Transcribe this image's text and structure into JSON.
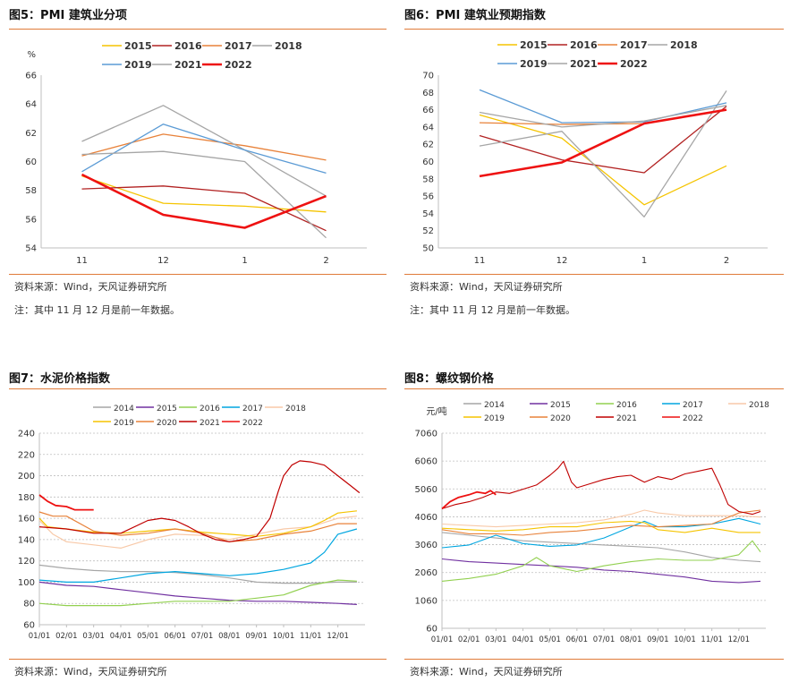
{
  "panels": [
    {
      "title": "图5：PMI 建筑业分项",
      "source": "资料来源：Wind，天风证券研究所",
      "note": "注：其中 11 月 12 月是前一年数据。"
    },
    {
      "title": "图6：PMI 建筑业预期指数",
      "source": "资料来源：Wind，天风证券研究所",
      "note": "注：其中 11 月 12 月是前一年数据。"
    },
    {
      "title": "图7：水泥价格指数",
      "source": "资料来源：Wind，天风证券研究所",
      "note": ""
    },
    {
      "title": "图8：螺纹钢价格",
      "source": "资料来源：Wind，天风证券研究所",
      "note": ""
    }
  ],
  "chart_data": [
    {
      "type": "line",
      "ylabel": "%",
      "categories": [
        "11",
        "12",
        "1",
        "2"
      ],
      "ylim": [
        54,
        66
      ],
      "yticks": [
        54,
        56,
        58,
        60,
        62,
        64,
        66
      ],
      "legend_placement": "top",
      "grid": false,
      "series": [
        {
          "name": "2015",
          "color": "#f5c400",
          "width": 1.3,
          "values": [
            59.0,
            57.1,
            56.9,
            56.5
          ]
        },
        {
          "name": "2016",
          "color": "#b22222",
          "width": 1.3,
          "values": [
            58.1,
            58.3,
            57.8,
            55.2
          ]
        },
        {
          "name": "2017",
          "color": "#e8823a",
          "width": 1.3,
          "values": [
            60.4,
            61.9,
            61.1,
            60.1
          ]
        },
        {
          "name": "2018",
          "color": "#a6a6a6",
          "width": 1.3,
          "values": [
            61.4,
            63.9,
            60.8,
            57.6
          ]
        },
        {
          "name": "2019",
          "color": "#5b9bd5",
          "width": 1.3,
          "values": [
            59.3,
            62.6,
            60.8,
            59.2
          ]
        },
        {
          "name": "2021",
          "color": "#a6a6a6",
          "width": 1.3,
          "values": [
            60.5,
            60.7,
            60.0,
            54.7
          ]
        },
        {
          "name": "2022",
          "color": "#ee1111",
          "width": 2.6,
          "values": [
            59.1,
            56.3,
            55.4,
            57.6
          ]
        }
      ]
    },
    {
      "type": "line",
      "categories": [
        "11",
        "12",
        "1",
        "2"
      ],
      "ylim": [
        50,
        70
      ],
      "yticks": [
        50,
        52,
        54,
        56,
        58,
        60,
        62,
        64,
        66,
        68,
        70
      ],
      "legend_placement": "top",
      "grid": false,
      "series": [
        {
          "name": "2015",
          "color": "#f5c400",
          "width": 1.3,
          "values": [
            65.4,
            62.7,
            55.0,
            59.5
          ]
        },
        {
          "name": "2016",
          "color": "#b22222",
          "width": 1.3,
          "values": [
            63.0,
            60.2,
            58.7,
            66.4
          ]
        },
        {
          "name": "2017",
          "color": "#e8823a",
          "width": 1.3,
          "values": [
            64.5,
            64.3,
            64.4,
            66.0
          ]
        },
        {
          "name": "2018",
          "color": "#a6a6a6",
          "width": 1.3,
          "values": [
            61.8,
            63.5,
            53.6,
            68.2
          ]
        },
        {
          "name": "2019",
          "color": "#5b9bd5",
          "width": 1.3,
          "values": [
            68.3,
            64.5,
            64.6,
            66.8
          ]
        },
        {
          "name": "2021",
          "color": "#a6a6a6",
          "width": 1.3,
          "values": [
            65.7,
            64.0,
            64.7,
            66.5
          ]
        },
        {
          "name": "2022",
          "color": "#ee1111",
          "width": 2.6,
          "values": [
            58.3,
            59.9,
            64.4,
            66.0
          ]
        }
      ]
    },
    {
      "type": "line",
      "x_ticks": [
        "01/01",
        "02/01",
        "03/01",
        "04/01",
        "05/01",
        "06/01",
        "07/01",
        "08/01",
        "09/01",
        "10/01",
        "11/01",
        "12/01"
      ],
      "ylim": [
        60,
        240
      ],
      "yticks": [
        60,
        80,
        100,
        120,
        140,
        160,
        180,
        200,
        220,
        240
      ],
      "legend_placement": "top",
      "grid": "horizontal-dashed",
      "series": [
        {
          "name": "2014",
          "color": "#a6a6a6",
          "width": 1.2,
          "months": [
            0,
            1,
            2,
            3,
            4,
            5,
            6,
            7,
            8,
            9,
            10,
            11,
            11.7
          ],
          "values": [
            116,
            113,
            111,
            110,
            110,
            109,
            107,
            104,
            100,
            99,
            99,
            100,
            100
          ]
        },
        {
          "name": "2015",
          "color": "#7030a0",
          "width": 1.2,
          "months": [
            0,
            1,
            2,
            3,
            4,
            5,
            6,
            7,
            8,
            9,
            10,
            11,
            11.7
          ],
          "values": [
            100,
            97,
            96,
            93,
            90,
            87,
            85,
            83,
            82,
            82,
            81,
            80,
            79
          ]
        },
        {
          "name": "2016",
          "color": "#92d050",
          "width": 1.2,
          "months": [
            0,
            1,
            2,
            3,
            4,
            5,
            6,
            7,
            8,
            9,
            10,
            11,
            11.7
          ],
          "values": [
            80,
            78,
            78,
            78,
            80,
            82,
            82,
            82,
            85,
            88,
            97,
            102,
            101
          ]
        },
        {
          "name": "2017",
          "color": "#00a6e0",
          "width": 1.2,
          "months": [
            0,
            1,
            2,
            3,
            4,
            5,
            6,
            7,
            8,
            9,
            9.5,
            10,
            10.5,
            11,
            11.7
          ],
          "values": [
            102,
            100,
            100,
            104,
            108,
            110,
            108,
            106,
            108,
            112,
            115,
            118,
            128,
            145,
            150
          ]
        },
        {
          "name": "2018",
          "color": "#f8c9a8",
          "width": 1.2,
          "months": [
            0,
            0.5,
            1,
            2,
            3,
            4,
            5,
            6,
            7,
            8,
            9,
            10,
            11,
            11.7
          ],
          "values": [
            158,
            145,
            138,
            135,
            132,
            140,
            145,
            144,
            140,
            145,
            150,
            152,
            160,
            162
          ]
        },
        {
          "name": "2019",
          "color": "#f5c400",
          "width": 1.2,
          "months": [
            0,
            0.3,
            1,
            2,
            3,
            4,
            5,
            6,
            7,
            8,
            9,
            10,
            10.5,
            11,
            11.7
          ],
          "values": [
            160,
            152,
            150,
            147,
            146,
            148,
            150,
            147,
            145,
            143,
            146,
            152,
            158,
            165,
            167
          ]
        },
        {
          "name": "2020",
          "color": "#e8823a",
          "width": 1.2,
          "months": [
            0,
            0.5,
            1,
            2,
            3,
            4,
            5,
            6,
            7,
            8,
            9,
            10,
            11,
            11.7
          ],
          "values": [
            166,
            162,
            162,
            148,
            144,
            146,
            150,
            146,
            138,
            140,
            145,
            148,
            155,
            155
          ]
        },
        {
          "name": "2021",
          "color": "#c00000",
          "width": 1.2,
          "months": [
            0,
            1,
            2,
            3,
            4,
            4.5,
            5,
            5.5,
            6,
            6.5,
            7,
            7.5,
            8,
            8.5,
            8.8,
            9,
            9.3,
            9.6,
            10,
            10.5,
            11,
            11.5,
            11.8
          ],
          "values": [
            152,
            150,
            146,
            146,
            158,
            160,
            158,
            152,
            145,
            140,
            138,
            140,
            143,
            160,
            185,
            200,
            210,
            214,
            213,
            210,
            200,
            190,
            184
          ]
        },
        {
          "name": "2022",
          "color": "#ee1111",
          "width": 1.8,
          "months": [
            0,
            0.3,
            0.6,
            1,
            1.3,
            1.7,
            2
          ],
          "values": [
            182,
            176,
            172,
            171,
            168,
            168,
            168
          ]
        }
      ]
    },
    {
      "type": "line",
      "ylabel": "元/吨",
      "x_ticks": [
        "01/01",
        "02/01",
        "03/01",
        "04/01",
        "05/01",
        "06/01",
        "07/01",
        "08/01",
        "09/01",
        "10/01",
        "11/01",
        "12/01"
      ],
      "ylim": [
        60,
        7060
      ],
      "yticks": [
        60,
        1060,
        2060,
        3060,
        4060,
        5060,
        6060,
        7060
      ],
      "legend_placement": "top",
      "grid": "horizontal-dashed",
      "series": [
        {
          "name": "2014",
          "color": "#a6a6a6",
          "width": 1.1,
          "months": [
            0,
            1,
            2,
            3,
            4,
            5,
            6,
            7,
            8,
            9,
            10,
            11,
            11.8
          ],
          "values": [
            3500,
            3400,
            3300,
            3200,
            3150,
            3100,
            3050,
            3000,
            2950,
            2800,
            2600,
            2500,
            2450
          ]
        },
        {
          "name": "2015",
          "color": "#7030a0",
          "width": 1.1,
          "months": [
            0,
            1,
            2,
            3,
            4,
            5,
            6,
            7,
            8,
            9,
            10,
            11,
            11.8
          ],
          "values": [
            2550,
            2450,
            2400,
            2350,
            2300,
            2250,
            2150,
            2100,
            2000,
            1900,
            1750,
            1700,
            1750
          ]
        },
        {
          "name": "2016",
          "color": "#92d050",
          "width": 1.1,
          "months": [
            0,
            1,
            2,
            3,
            3.5,
            4,
            5,
            6,
            7,
            8,
            9,
            10,
            11,
            11.5,
            11.8
          ],
          "values": [
            1750,
            1850,
            2000,
            2300,
            2600,
            2300,
            2100,
            2300,
            2450,
            2550,
            2500,
            2500,
            2700,
            3200,
            2800
          ]
        },
        {
          "name": "2017",
          "color": "#00a6e0",
          "width": 1.1,
          "months": [
            0,
            1,
            2,
            3,
            4,
            5,
            6,
            7,
            7.5,
            8,
            9,
            10,
            10.5,
            11,
            11.8
          ],
          "values": [
            2950,
            3050,
            3400,
            3100,
            3000,
            3050,
            3300,
            3700,
            3900,
            3700,
            3700,
            3800,
            3900,
            4000,
            3800
          ]
        },
        {
          "name": "2018",
          "color": "#f8c9a8",
          "width": 1.1,
          "months": [
            0,
            1,
            2,
            3,
            4,
            5,
            6,
            7,
            7.5,
            8,
            9,
            10,
            11,
            11.8
          ],
          "values": [
            3800,
            3750,
            3700,
            3750,
            3800,
            3850,
            3950,
            4150,
            4300,
            4200,
            4100,
            4100,
            4100,
            4050
          ]
        },
        {
          "name": "2019",
          "color": "#f5c400",
          "width": 1.1,
          "months": [
            0,
            1,
            2,
            3,
            4,
            5,
            6,
            7,
            7.5,
            8,
            9,
            10,
            11,
            11.8
          ],
          "values": [
            3650,
            3600,
            3550,
            3600,
            3700,
            3700,
            3850,
            3900,
            3850,
            3600,
            3500,
            3650,
            3500,
            3500
          ]
        },
        {
          "name": "2020",
          "color": "#e8823a",
          "width": 1.1,
          "months": [
            0,
            1,
            2,
            3,
            4,
            5,
            6,
            7,
            8,
            9,
            10,
            11,
            11.8
          ],
          "values": [
            3600,
            3450,
            3450,
            3400,
            3500,
            3550,
            3650,
            3750,
            3700,
            3750,
            3800,
            4200,
            4300
          ]
        },
        {
          "name": "2021",
          "color": "#c00000",
          "width": 1.1,
          "months": [
            0,
            0.5,
            1,
            1.5,
            2,
            2.5,
            3,
            3.5,
            4,
            4.3,
            4.5,
            4.8,
            5,
            5.5,
            6,
            6.5,
            7,
            7.5,
            8,
            8.5,
            9,
            9.5,
            10,
            10.3,
            10.6,
            11,
            11.5,
            11.8
          ],
          "values": [
            4350,
            4500,
            4600,
            4750,
            4950,
            4900,
            5050,
            5200,
            5550,
            5800,
            6050,
            5300,
            5100,
            5250,
            5400,
            5500,
            5550,
            5300,
            5500,
            5400,
            5600,
            5700,
            5800,
            5200,
            4500,
            4250,
            4150,
            4250
          ]
        },
        {
          "name": "2022",
          "color": "#ee1111",
          "width": 1.8,
          "months": [
            0,
            0.3,
            0.6,
            1,
            1.3,
            1.6,
            1.8,
            2
          ],
          "values": [
            4350,
            4600,
            4750,
            4850,
            4950,
            4900,
            5000,
            4850
          ]
        }
      ]
    }
  ]
}
